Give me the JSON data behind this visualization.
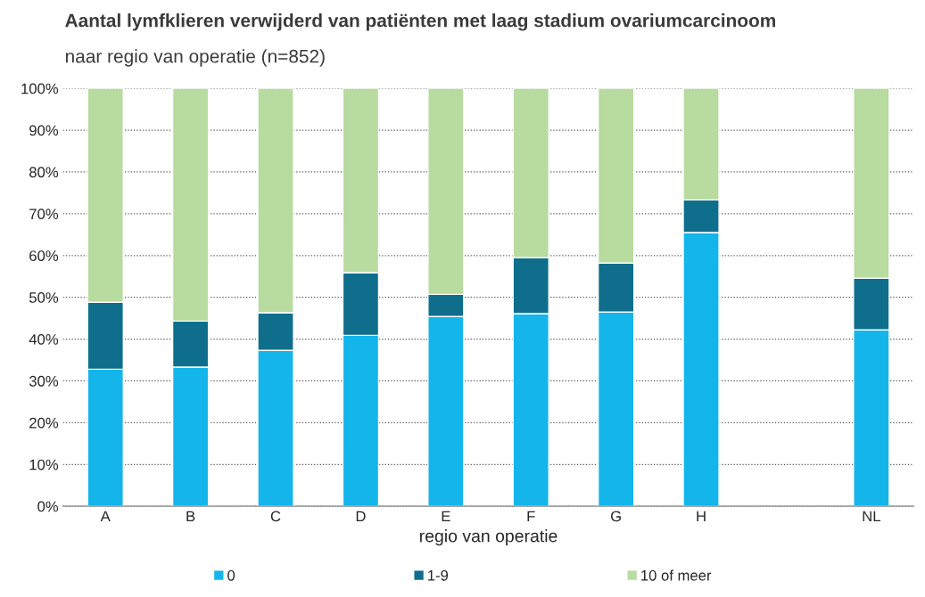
{
  "chart_data": {
    "type": "bar",
    "stacked": true,
    "title": "Aantal lymfklieren verwijderd van patiënten met laag stadium ovariumcarcinoom",
    "subtitle": "naar regio van operatie (n=852)",
    "xlabel": "regio van operatie",
    "categories": [
      "A",
      "B",
      "C",
      "D",
      "E",
      "F",
      "G",
      "H",
      null,
      "NL"
    ],
    "series": [
      {
        "name": "0",
        "color": "#13b5ea",
        "values": [
          32.8,
          33.3,
          37.3,
          40.9,
          45.4,
          46.1,
          46.5,
          65.5,
          null,
          42.2
        ]
      },
      {
        "name": "1-9",
        "color": "#0e6e8c",
        "values": [
          16.0,
          11.0,
          9.0,
          15.0,
          5.3,
          13.4,
          11.7,
          7.8,
          null,
          12.4
        ]
      },
      {
        "name": "10 of meer",
        "color": "#b8dba0",
        "values": [
          51.2,
          55.7,
          53.7,
          44.1,
          49.3,
          40.5,
          41.8,
          26.7,
          null,
          45.4
        ]
      }
    ],
    "ylim": [
      0,
      100
    ],
    "yticks": [
      {
        "value": 0,
        "label": "0%"
      },
      {
        "value": 10,
        "label": "10%"
      },
      {
        "value": 20,
        "label": "20%"
      },
      {
        "value": 30,
        "label": "30%"
      },
      {
        "value": 40,
        "label": "40%"
      },
      {
        "value": 50,
        "label": "50%"
      },
      {
        "value": 60,
        "label": "60%"
      },
      {
        "value": 70,
        "label": "70%"
      },
      {
        "value": 80,
        "label": "80%"
      },
      {
        "value": 90,
        "label": "90%"
      },
      {
        "value": 100,
        "label": "100%"
      }
    ],
    "grid": "y",
    "legend": "bottom"
  }
}
